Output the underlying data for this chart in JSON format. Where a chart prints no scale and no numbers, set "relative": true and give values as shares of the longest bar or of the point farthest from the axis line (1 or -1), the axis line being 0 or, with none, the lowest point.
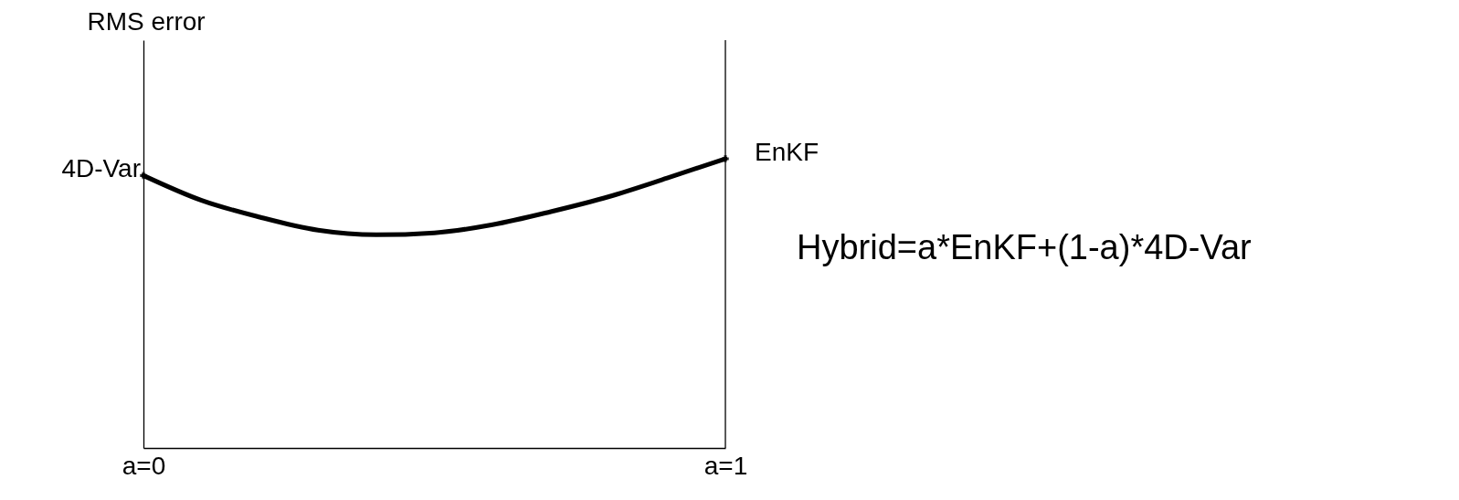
{
  "chart_data": {
    "type": "line",
    "relative": true,
    "ylabel": "RMS error",
    "xlim": [
      0,
      1
    ],
    "xticks": [
      {
        "value": 0,
        "label": "a=0"
      },
      {
        "value": 1,
        "label": "a=1"
      }
    ],
    "series": [
      {
        "color": "#000000",
        "x": [
          0,
          0.1,
          0.2,
          0.3,
          0.4,
          0.5,
          0.6,
          0.7,
          0.8,
          0.9,
          1
        ],
        "values": [
          0.942,
          0.856,
          0.798,
          0.753,
          0.737,
          0.744,
          0.772,
          0.817,
          0.869,
          0.933,
          1.0
        ]
      },
      {
        "type": "scatter",
        "marker": "cross",
        "color": "#000000",
        "x": [
          0,
          1
        ],
        "values": [
          0.942,
          1.0
        ]
      }
    ],
    "ref_lines": [
      {
        "axis": "x",
        "value": 1,
        "color": "#000000"
      }
    ],
    "grid": false,
    "annotations": [
      {
        "text": "4D-Var",
        "x": 0,
        "y": 0.942
      },
      {
        "text": "EnKF",
        "x": 1,
        "y": 1.0
      },
      "Hybrid=a*EnKF+(1-a)*4D-Var"
    ]
  }
}
